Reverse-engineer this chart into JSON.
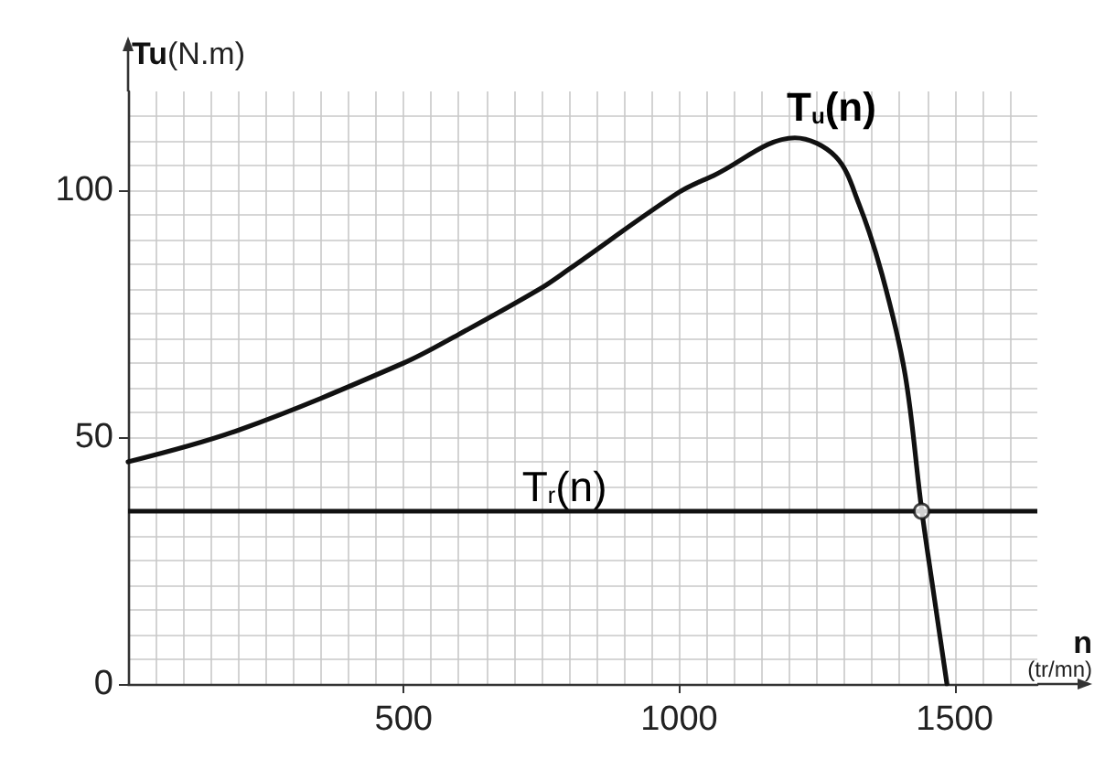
{
  "chart_data": {
    "type": "line",
    "xlabel": "n (tr/mn)",
    "ylabel": "Tu(N.m)",
    "xlim": [
      0,
      1650
    ],
    "ylim": [
      0,
      120
    ],
    "xticks": [
      500,
      1000,
      1500
    ],
    "yticks": [
      0,
      50,
      100
    ],
    "grid": true,
    "legend": false,
    "marker": "none",
    "series": [
      {
        "name": "T$_{u}$(n)",
        "color": "#111111",
        "x": [
          0,
          200,
          500,
          600,
          747,
          800,
          1000,
          1063,
          1210,
          1284,
          1326,
          1368,
          1410,
          1440,
          1463,
          1486
        ],
        "values": [
          45,
          51.4,
          65,
          70.8,
          80,
          84,
          99.6,
          103,
          110.6,
          106.8,
          97.3,
          83,
          62.7,
          35.4,
          17.5,
          0
        ]
      },
      {
        "type": "scatter",
        "marker": "circle",
        "color": "#111111",
        "x": [
          1440
        ],
        "values": [
          35
        ]
      }
    ],
    "ref_lines": [
      {
        "axis": "y",
        "value": 35,
        "label": "T$_{r}$(n)",
        "color": "#111111"
      }
    ]
  }
}
